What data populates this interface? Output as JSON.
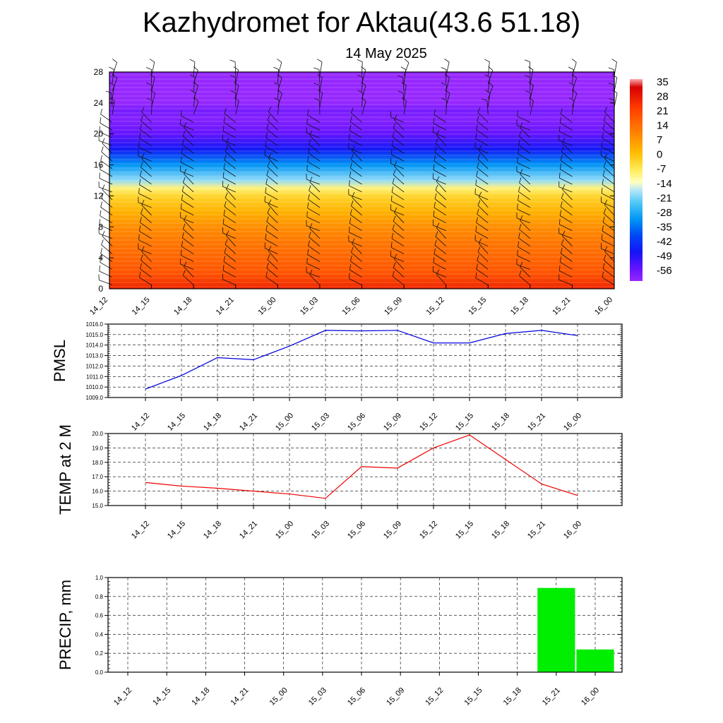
{
  "title": "Kazhydromet for Aktau(43.6 51.18)",
  "subtitle": "14 May 2025",
  "chart_data": [
    {
      "type": "heatmap",
      "name": "temperature-cross-section",
      "x_tick_labels": [
        "14_12",
        "14_15",
        "14_18",
        "14_21",
        "15_00",
        "15_03",
        "15_06",
        "15_09",
        "15_12",
        "15_15",
        "15_18",
        "15_21",
        "16_00"
      ],
      "ylim": [
        0,
        28
      ],
      "y_ticks": [
        0,
        4,
        8,
        12,
        16,
        20,
        24,
        28
      ],
      "colorbar_labels": [
        "35",
        "28",
        "21",
        "14",
        "7",
        "0",
        "-7",
        "-14",
        "-21",
        "-28",
        "-35",
        "-42",
        "-49",
        "-56"
      ],
      "colorbar_range": [
        -60,
        38
      ],
      "profile_levels": [
        0,
        2,
        4,
        6,
        8,
        10,
        12,
        13,
        14,
        16,
        18,
        20,
        22,
        23,
        24,
        26,
        28
      ],
      "profile_values": [
        28,
        20,
        17,
        14,
        10,
        4,
        -2,
        -8,
        -18,
        -30,
        -45,
        -54,
        -58,
        -56,
        -62,
        -63,
        -63
      ],
      "wind_barbs": true
    },
    {
      "type": "line",
      "name": "pmsl",
      "ylabel": "PMSL",
      "x": [
        "14_12",
        "14_15",
        "14_18",
        "14_21",
        "15_00",
        "15_03",
        "15_06",
        "15_09",
        "15_12",
        "15_15",
        "15_18",
        "15_21",
        "16_00"
      ],
      "values": [
        1009.8,
        1011.1,
        1012.8,
        1012.6,
        1013.9,
        1015.4,
        1015.35,
        1015.4,
        1014.2,
        1014.2,
        1015.1,
        1015.4,
        1014.9
      ],
      "ylim": [
        1009.0,
        1016.0
      ],
      "y_tick_labels": [
        "1009.0",
        "1010.0",
        "1011.0",
        "1012.0",
        "1013.0",
        "1014.0",
        "1015.0",
        "1016.0"
      ],
      "color": "#0000dd",
      "grid": true
    },
    {
      "type": "line",
      "name": "temp-2m",
      "ylabel": "TEMP at 2 M",
      "x": [
        "14_12",
        "14_15",
        "14_18",
        "14_21",
        "15_00",
        "15_03",
        "15_06",
        "15_09",
        "15_12",
        "15_15",
        "15_18",
        "15_21",
        "16_00"
      ],
      "values": [
        16.6,
        16.35,
        16.2,
        16.0,
        15.8,
        15.5,
        17.7,
        17.6,
        19.0,
        19.9,
        18.2,
        16.5,
        15.7
      ],
      "ylim": [
        15.0,
        20.0
      ],
      "y_tick_labels": [
        "15.0",
        "16.0",
        "17.0",
        "18.0",
        "19.0",
        "20.0"
      ],
      "color": "#ee0000",
      "grid": true
    },
    {
      "type": "bar",
      "name": "precip",
      "ylabel": "PRECIP, mm",
      "x": [
        "14_12",
        "14_15",
        "14_18",
        "14_21",
        "15_00",
        "15_03",
        "15_06",
        "15_09",
        "15_12",
        "15_15",
        "15_18",
        "15_21",
        "16_00"
      ],
      "values": [
        0,
        0,
        0,
        0,
        0,
        0,
        0,
        0,
        0,
        0,
        0,
        0.89,
        0.24
      ],
      "ylim": [
        0.0,
        1.0
      ],
      "y_tick_labels": [
        "0.0",
        "0.2",
        "0.4",
        "0.6",
        "0.8",
        "1.0"
      ],
      "color": "#00ee00",
      "grid": true
    }
  ]
}
